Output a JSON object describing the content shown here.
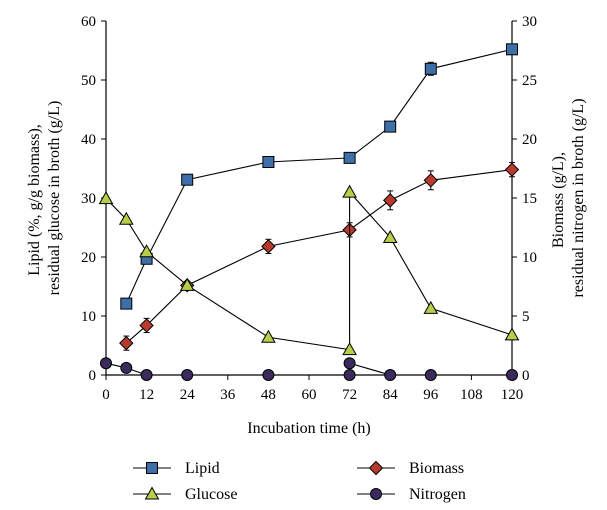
{
  "chart_data": {
    "type": "line",
    "xlabel": "Incubation time (h)",
    "ylabel_left": [
      "Lipid (%, g/g biomass),",
      "residual glucose in broth (g/L)"
    ],
    "ylabel_right": [
      "Biomass (g/L),",
      "residual nitrogen in broth (g/L)"
    ],
    "x_ticks": [
      0,
      12,
      24,
      36,
      48,
      60,
      72,
      84,
      96,
      108,
      120
    ],
    "left_ticks": [
      0,
      10,
      20,
      30,
      40,
      50,
      60
    ],
    "right_ticks": [
      0,
      5,
      10,
      15,
      20,
      25,
      30
    ],
    "xlim": [
      0,
      120
    ],
    "ylim_left": [
      0,
      60
    ],
    "ylim_right": [
      0,
      30
    ],
    "grid": false,
    "legend_position": "bottom",
    "series": [
      {
        "name": "Lipid",
        "axis": "left",
        "marker": "square",
        "color": "#3f6fa8",
        "x": [
          6,
          12,
          24,
          48,
          72,
          84,
          96,
          120
        ],
        "y": [
          12.1,
          19.7,
          33.1,
          36.1,
          36.8,
          42.1,
          51.9,
          55.2
        ],
        "error": [
          0.8,
          0.6,
          0,
          0,
          0,
          0,
          1.1,
          0.6
        ]
      },
      {
        "name": "Biomass",
        "axis": "right",
        "marker": "diamond",
        "color": "#b83a2e",
        "x": [
          6,
          12,
          24,
          48,
          72,
          84,
          96,
          120
        ],
        "y": [
          2.7,
          4.2,
          7.6,
          10.9,
          12.3,
          14.8,
          16.5,
          17.4
        ],
        "error": [
          0.6,
          0.6,
          0,
          0.6,
          0.6,
          0.8,
          0.8,
          0.6
        ]
      },
      {
        "name": "Glucose",
        "axis": "left",
        "marker": "triangle",
        "color": "#b5cf4a",
        "x": [
          0,
          6,
          12,
          24,
          48,
          72,
          72,
          84,
          96,
          120
        ],
        "y": [
          29.9,
          26.4,
          20.9,
          15.2,
          6.4,
          4.3,
          31.0,
          23.3,
          11.3,
          6.8
        ],
        "error": [
          0,
          0,
          0,
          0,
          0,
          0,
          0,
          0,
          0,
          0
        ]
      },
      {
        "name": "Nitrogen",
        "axis": "right",
        "marker": "circle",
        "color": "#3b2a5c",
        "x": [
          0,
          6,
          12,
          24,
          48,
          72,
          72,
          84,
          96,
          120
        ],
        "y": [
          1.0,
          0.6,
          0,
          0,
          0,
          0,
          1.0,
          0,
          0,
          0
        ],
        "error": [
          0,
          0,
          0,
          0,
          0,
          0,
          0,
          0,
          0,
          0
        ]
      }
    ]
  }
}
